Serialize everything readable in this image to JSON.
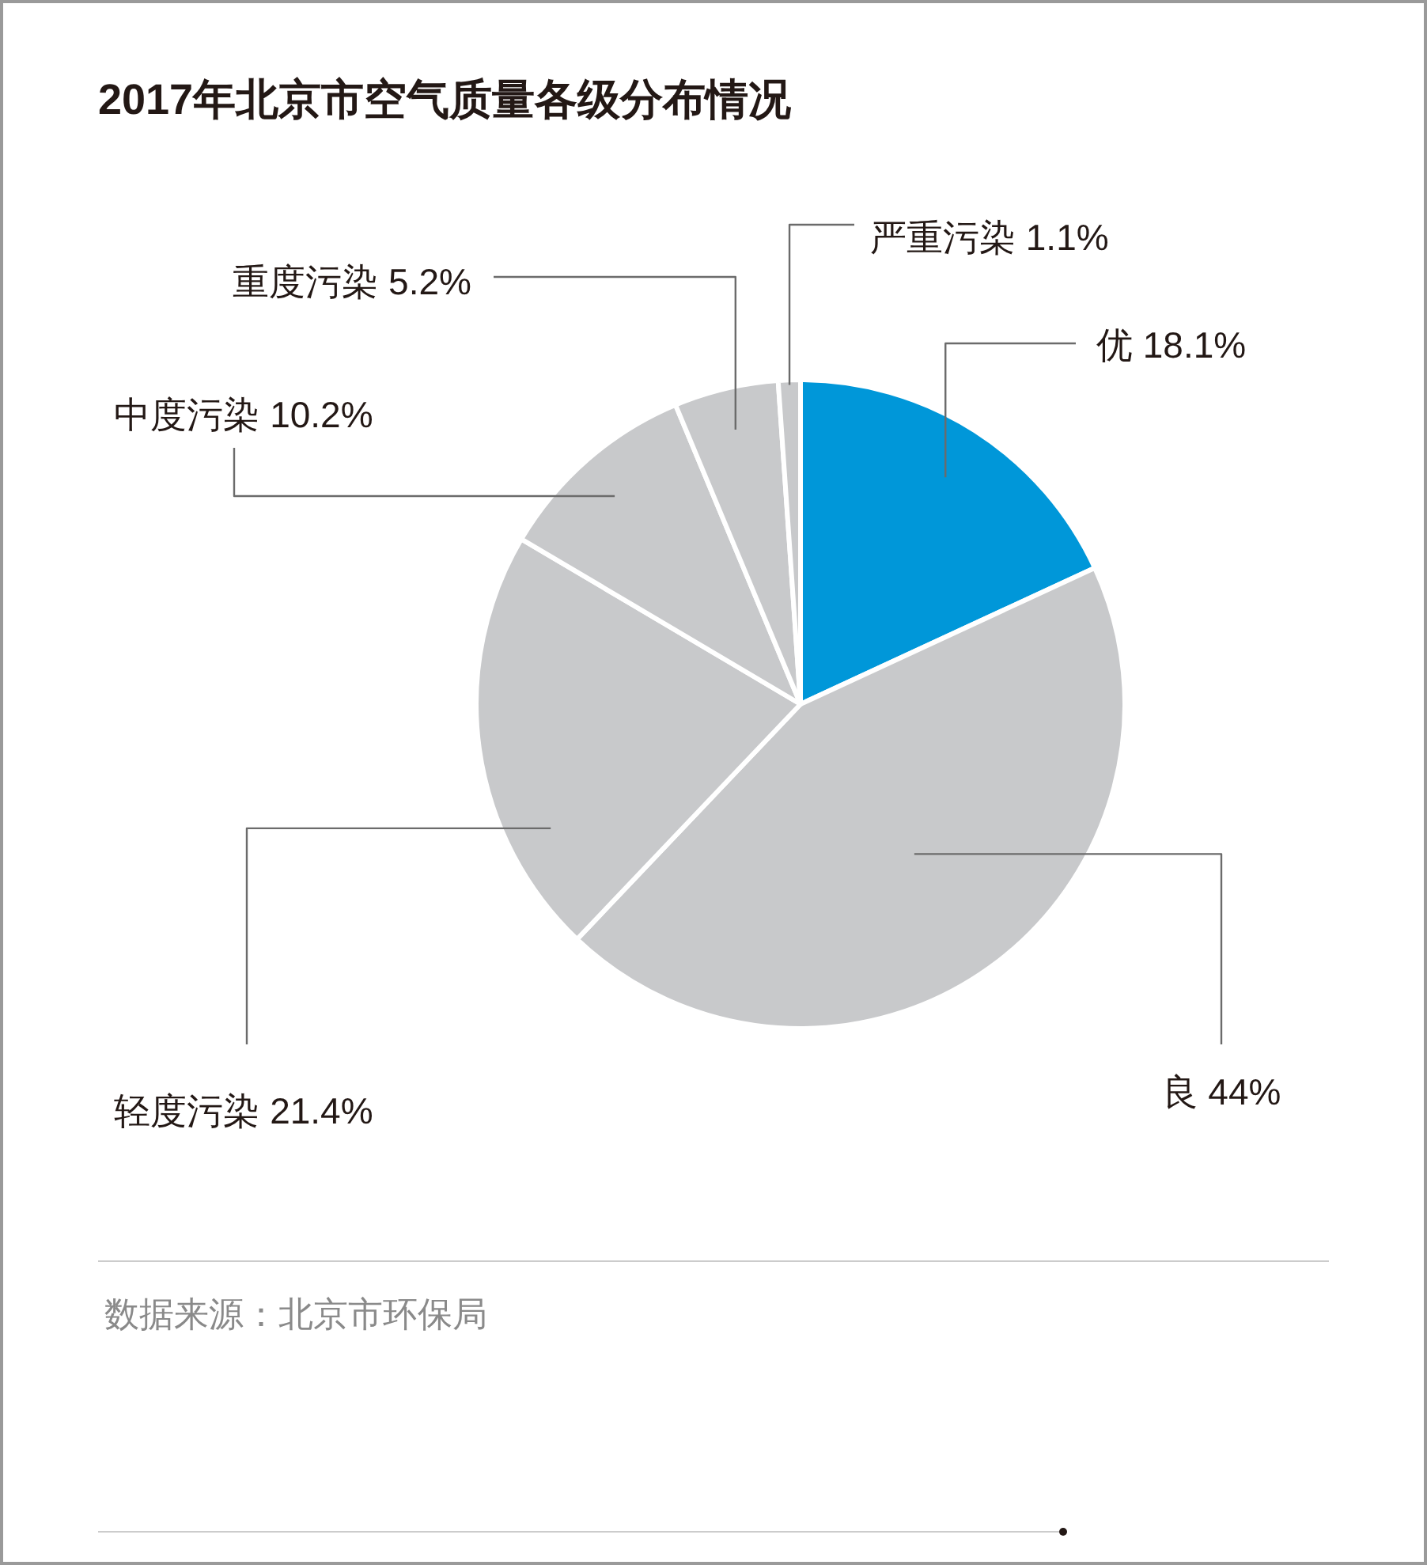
{
  "chart_data": {
    "type": "pie",
    "title": "2017年北京市空气质量各级分布情况",
    "categories": [
      "优",
      "良",
      "轻度污染",
      "中度污染",
      "重度污染",
      "严重污染"
    ],
    "values": [
      18.1,
      44,
      21.4,
      10.2,
      5.2,
      1.1
    ],
    "value_labels": [
      "18.1%",
      "44%",
      "21.4%",
      "10.2%",
      "5.2%",
      "1.1%"
    ],
    "colors": [
      "#0097d9",
      "#c8c9cb",
      "#c8c9cb",
      "#c8c9cb",
      "#c8c9cb",
      "#c8c9cb"
    ],
    "annotations": [
      "数据来源：北京市环保局"
    ]
  }
}
